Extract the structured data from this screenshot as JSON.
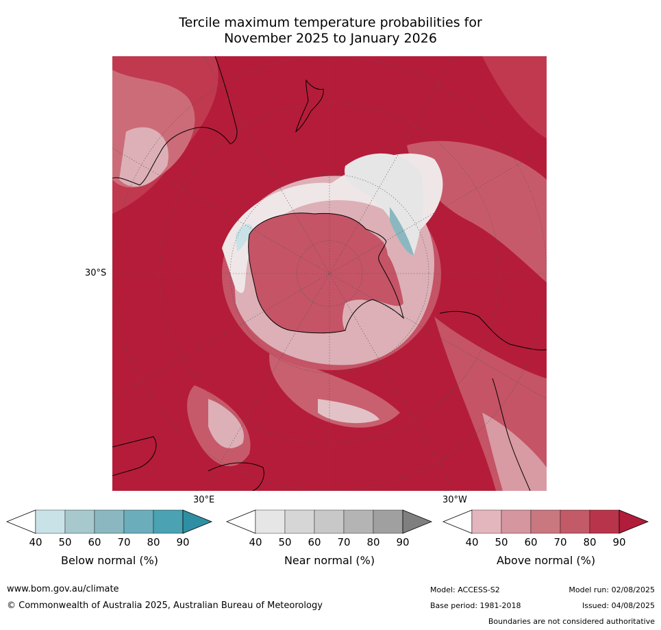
{
  "title": {
    "line1": "Tercile maximum temperature probabilities for",
    "line2": "November 2025 to January 2026"
  },
  "map": {
    "projection": "south-polar-stereographic",
    "labels": {
      "lat_30s": "30°S",
      "lon_30e": "30°E",
      "lon_30w": "30°W"
    }
  },
  "colorbars": [
    {
      "label": "Below normal (%)",
      "ticks": [
        "40",
        "50",
        "60",
        "70",
        "80",
        "90"
      ],
      "colors": [
        "#ffffff",
        "#c8e2e8",
        "#a7c8cd",
        "#8bb8c0",
        "#6cadbb",
        "#4aa2b2",
        "#2e8fa4"
      ]
    },
    {
      "label": "Near normal (%)",
      "ticks": [
        "40",
        "50",
        "60",
        "70",
        "80",
        "90"
      ],
      "colors": [
        "#ffffff",
        "#e6e6e6",
        "#d6d6d6",
        "#c8c8c8",
        "#b4b4b4",
        "#a0a0a0",
        "#7f7f7f"
      ]
    },
    {
      "label": "Above normal (%)",
      "ticks": [
        "40",
        "50",
        "60",
        "70",
        "80",
        "90"
      ],
      "colors": [
        "#ffffff",
        "#e3b6bd",
        "#d6969f",
        "#c97880",
        "#c25a68",
        "#b8344b",
        "#b01c3a"
      ]
    }
  ],
  "footer": {
    "url": "www.bom.gov.au/climate",
    "copyright": "© Commonwealth of Australia 2025, Australian Bureau of Meteorology",
    "model": "Model: ACCESS-S2",
    "model_run": "Model run: 02/08/2025",
    "base_period": "Base period: 1981-2018",
    "issued": "Issued: 04/08/2025",
    "disclaimer": "Boundaries are not considered authoritative"
  }
}
